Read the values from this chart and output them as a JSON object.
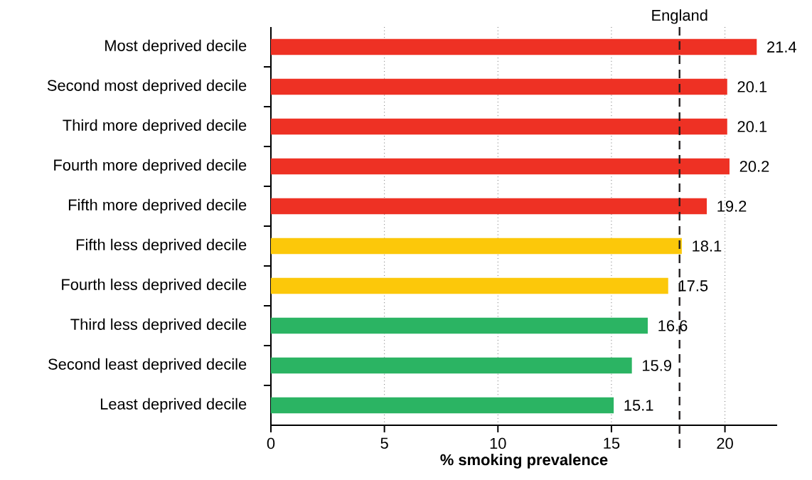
{
  "chart_data": {
    "type": "bar",
    "orientation": "horizontal",
    "xlabel": "% smoking prevalence",
    "categories": [
      "Most deprived decile",
      "Second most deprived decile",
      "Third more deprived decile",
      "Fourth more deprived decile",
      "Fifth more deprived decile",
      "Fifth less deprived decile",
      "Fourth less deprived decile",
      "Third less deprived decile",
      "Second least deprived decile",
      "Least deprived decile"
    ],
    "values": [
      21.4,
      20.1,
      20.1,
      20.2,
      19.2,
      18.1,
      17.5,
      16.6,
      15.9,
      15.1
    ],
    "colors": [
      "#ee3124",
      "#ee3124",
      "#ee3124",
      "#ee3124",
      "#ee3124",
      "#fcc80a",
      "#fcc80a",
      "#2bb463",
      "#2bb463",
      "#2bb463"
    ],
    "value_labels": [
      "21.4",
      "20.1",
      "20.1",
      "20.2",
      "19.2",
      "18.1",
      "17.5",
      "16.6",
      "15.9",
      "15.1"
    ],
    "xlim": [
      0,
      22.3
    ],
    "xticks": [
      0,
      5,
      10,
      15,
      20
    ],
    "grid": "x",
    "ref_lines": [
      {
        "axis": "x",
        "value": 18.0,
        "label": "England",
        "color": "#231f20",
        "line_style": "dashed"
      }
    ]
  }
}
